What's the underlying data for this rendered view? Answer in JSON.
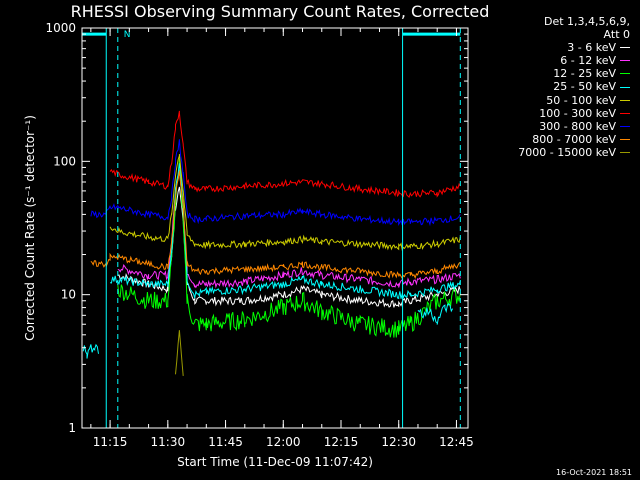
{
  "chart_data": {
    "type": "line",
    "title": "RHESSI Observing Summary Count Rates, Corrected",
    "xlabel": "Start Time (11-Dec-09 11:07:42)",
    "ylabel": "Corrected Count Rate (s⁻¹ detector⁻¹)",
    "yscale": "log",
    "ylim": [
      1,
      1000
    ],
    "xlim": [
      "11:07:42",
      "12:48:00"
    ],
    "x_tick_labels": [
      "11:15",
      "11:30",
      "11:45",
      "12:00",
      "12:15",
      "12:30",
      "12:45"
    ],
    "y_tick_labels": [
      "1",
      "10",
      "100",
      "1000"
    ],
    "legend_header": [
      "Det 1,3,4,5,6,9,",
      "Att 0"
    ],
    "legend_position": "right",
    "grid": false,
    "x": [
      "11:10",
      "11:14",
      "11:15",
      "11:17",
      "11:25",
      "11:30",
      "11:31",
      "11:32",
      "11:33",
      "11:34",
      "11:35",
      "11:37",
      "11:40",
      "11:50",
      "12:00",
      "12:05",
      "12:10",
      "12:20",
      "12:30",
      "12:33",
      "12:40",
      "12:46"
    ],
    "series": [
      {
        "name": "3 - 6 keV",
        "color": "#ffffff",
        "values": [
          null,
          null,
          null,
          14,
          12,
          11,
          20,
          45,
          68,
          35,
          12,
          9,
          9,
          9,
          10,
          11,
          10,
          9,
          8.5,
          9,
          10,
          11
        ]
      },
      {
        "name": "6 - 12 keV",
        "color": "#ff33ff",
        "values": [
          null,
          null,
          null,
          16,
          14,
          14,
          25,
          60,
          90,
          45,
          15,
          12,
          12,
          12.5,
          14,
          15,
          14,
          13,
          12,
          12.5,
          13,
          14
        ]
      },
      {
        "name": "12 - 25 keV",
        "color": "#00ff00",
        "values": [
          null,
          null,
          null,
          11,
          9,
          9,
          18,
          50,
          90,
          40,
          9,
          6,
          6,
          6.5,
          8,
          9,
          7.5,
          6,
          5.5,
          6,
          9,
          10
        ]
      },
      {
        "name": "25 - 50 keV",
        "color": "#00ffff",
        "values": [
          null,
          null,
          13,
          13,
          12,
          12,
          22,
          60,
          100,
          50,
          13,
          10,
          10.5,
          11,
          12,
          13,
          12,
          11,
          10,
          10,
          11,
          12
        ]
      },
      {
        "name": "50 - 100 keV",
        "color": "#cccc00",
        "values": [
          null,
          null,
          33,
          30,
          27,
          26,
          40,
          80,
          115,
          60,
          28,
          24,
          23.5,
          24,
          25,
          26,
          25,
          24,
          23,
          23,
          24,
          26
        ]
      },
      {
        "name": "100 - 300 keV",
        "color": "#ff0000",
        "values": [
          null,
          null,
          85,
          80,
          70,
          65,
          100,
          180,
          240,
          130,
          70,
          62,
          62,
          65,
          68,
          70,
          68,
          62,
          58,
          57,
          58,
          65
        ]
      },
      {
        "name": "300 - 800 keV",
        "color": "#0000ff",
        "values": [
          40,
          40,
          45,
          45,
          40,
          38,
          55,
          100,
          140,
          80,
          40,
          37,
          37,
          39,
          40,
          42,
          40,
          37,
          35,
          35,
          36,
          38
        ]
      },
      {
        "name": "800 - 7000 keV",
        "color": "#ff8800",
        "values": [
          17,
          17,
          19,
          19,
          17,
          16,
          25,
          55,
          85,
          45,
          17,
          15,
          15,
          15.5,
          16,
          17,
          16,
          15,
          14,
          14,
          15,
          17
        ]
      },
      {
        "name": "7000 - 15000 keV",
        "color": "#999900",
        "values": [
          null,
          null,
          null,
          null,
          null,
          null,
          null,
          2.5,
          5.5,
          2.5,
          null,
          null,
          null,
          null,
          null,
          null,
          null,
          null,
          null,
          null,
          null,
          null
        ]
      }
    ],
    "extra_series": [
      {
        "name": "low-cyan",
        "color": "#00ffff",
        "x": [
          "11:08",
          "11:09",
          "11:11",
          "11:12"
        ],
        "values": [
          4,
          3.6,
          4.2,
          3.8
        ]
      },
      {
        "name": "low-cyan-late",
        "color": "#00ffff",
        "x": [
          "12:35",
          "12:36",
          "12:38",
          "12:40",
          "12:42",
          "12:44"
        ],
        "values": [
          8,
          7,
          7.5,
          6.5,
          8,
          8
        ]
      }
    ],
    "markers": {
      "color": "#00ffff",
      "vertical_solid": [
        "11:14",
        "12:31"
      ],
      "vertical_dashed": [
        "11:17",
        "12:46"
      ],
      "bars": [
        {
          "x_start": "11:07:42",
          "x_end": "11:14",
          "y": 900
        },
        {
          "x_start": "12:31",
          "x_end": "12:46",
          "y": 900
        }
      ],
      "bar_label": "N"
    }
  },
  "footer": "16-Oct-2021 18:51"
}
